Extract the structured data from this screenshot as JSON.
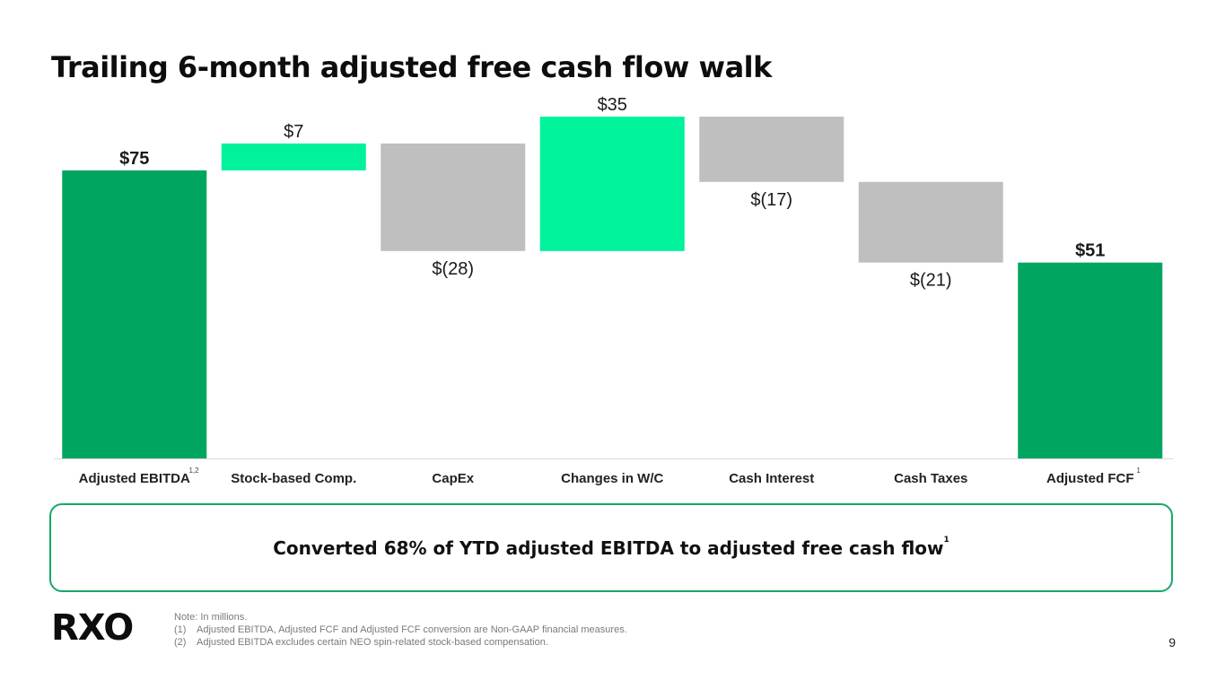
{
  "title": "Trailing 6-month adjusted free cash flow walk",
  "chart_data": {
    "type": "bar",
    "subtype": "waterfall",
    "categories": [
      "Adjusted EBITDA",
      "Stock-based Comp.",
      "CapEx",
      "Changes in W/C",
      "Cash Interest",
      "Cash Taxes",
      "Adjusted FCF"
    ],
    "category_footnotes": [
      "1,2",
      "",
      "",
      "",
      "",
      "",
      "1"
    ],
    "values": [
      75,
      7,
      -28,
      35,
      -17,
      -21,
      51
    ],
    "bar_kinds": [
      "total",
      "increase",
      "decrease",
      "increase",
      "decrease",
      "decrease",
      "total"
    ],
    "data_labels": [
      "$75",
      "$7",
      "$(28)",
      "$35",
      "$(17)",
      "$(21)",
      "$51"
    ],
    "units": "millions",
    "ylim": [
      0,
      89
    ]
  },
  "colors": {
    "total": "#00a65f",
    "increase": "#00f29b",
    "decrease": "#bfbfbf",
    "accent_border": "#16a86a"
  },
  "callout": {
    "text": "Converted 68% of YTD adjusted EBITDA to adjusted free cash flow",
    "footnote": "1"
  },
  "logo_text": "RXO",
  "notes": {
    "intro": "Note: In millions.",
    "items": [
      {
        "num": "(1)",
        "text": "Adjusted EBITDA, Adjusted FCF and Adjusted FCF conversion are Non-GAAP financial measures."
      },
      {
        "num": "(2)",
        "text": "Adjusted EBITDA excludes certain NEO spin-related stock-based compensation."
      }
    ]
  },
  "page_number": "9"
}
